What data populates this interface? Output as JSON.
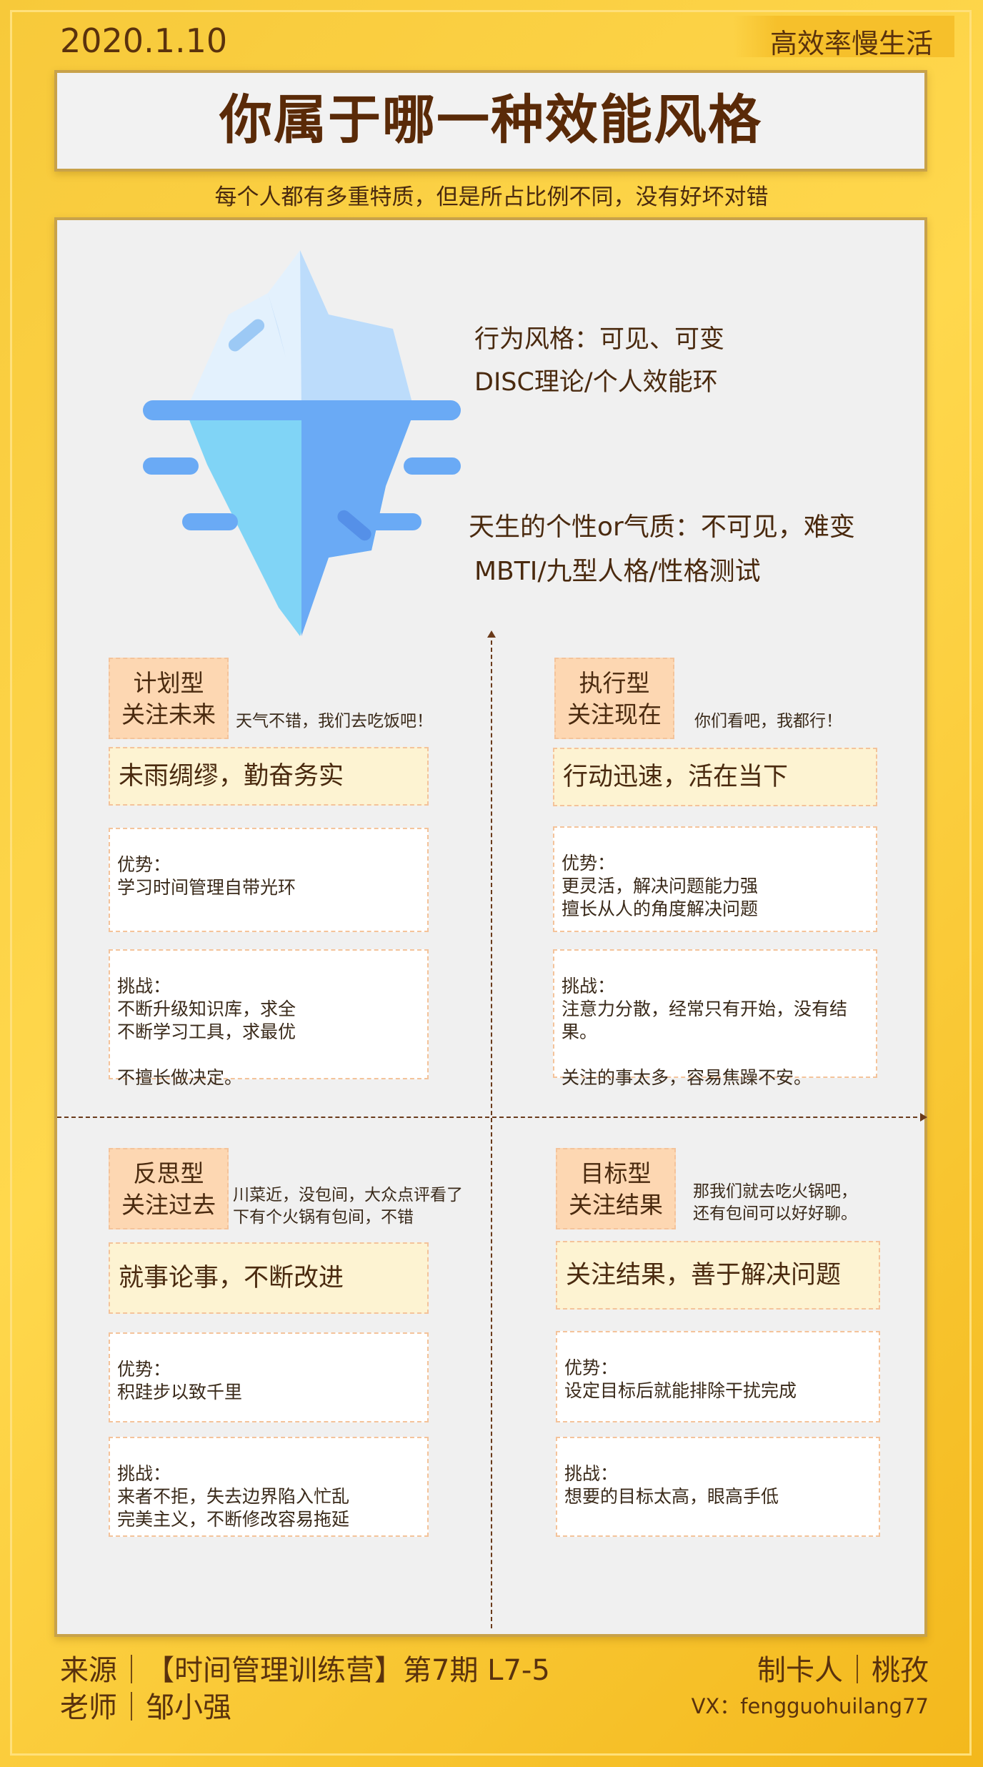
{
  "header": {
    "date": "2020.1.10",
    "brand": "高效率慢生活"
  },
  "title": "你属于哪一种效能风格",
  "subtitle": "每个人都有多重特质，但是所占比例不同，没有好坏对错",
  "iceberg": {
    "visible_line1": "行为风格：可见、可变",
    "visible_line2": "DISC理论/个人效能环",
    "hidden_line1": "天生的个性or气质：不可见，难变",
    "hidden_line2": "MBTI/九型人格/性格测试"
  },
  "quadrants": {
    "plan": {
      "type": "计划型",
      "focus": "关注未来",
      "quote": "天气不错，我们去吃饭吧！",
      "motto": "未雨绸缪，勤奋务实",
      "adv": [
        "优势：",
        "学习时间管理自带光环"
      ],
      "chal": [
        "挑战：",
        "不断升级知识库，求全",
        "不断学习工具，求最优",
        "",
        "不擅长做决定。"
      ]
    },
    "exec": {
      "type": "执行型",
      "focus": "关注现在",
      "quote": "你们看吧，我都行！",
      "motto": "行动迅速，活在当下",
      "adv": [
        "优势：",
        "更灵活，解决问题能力强",
        "擅长从人的角度解决问题"
      ],
      "chal": [
        "挑战：",
        "注意力分散，经常只有开始，没有结",
        "果。",
        "",
        "关注的事太多，容易焦躁不安。"
      ]
    },
    "reflect": {
      "type": "反思型",
      "focus": "关注过去",
      "quote1": "川菜近，没包间，大众点评看了",
      "quote2": "下有个火锅有包间，不错",
      "motto": "就事论事，不断改进",
      "adv": [
        "优势：",
        "积跬步以致千里"
      ],
      "chal": [
        "挑战：",
        "来者不拒，失去边界陷入忙乱",
        "完美主义，不断修改容易拖延"
      ]
    },
    "goal": {
      "type": "目标型",
      "focus": "关注结果",
      "quote1": "那我们就去吃火锅吧，",
      "quote2": "还有包间可以好好聊。",
      "motto": "关注结果，善于解决问题",
      "adv": [
        "优势：",
        "设定目标后就能排除干扰完成"
      ],
      "chal": [
        "挑战：",
        "想要的目标太高，眼高手低"
      ]
    }
  },
  "footer": {
    "source": "来源｜【时间管理训练营】第7期  L7-5",
    "teacher": "老师｜邹小强",
    "maker": "制卡人｜桃孜",
    "vx": "VX：fengguohuilang77"
  }
}
